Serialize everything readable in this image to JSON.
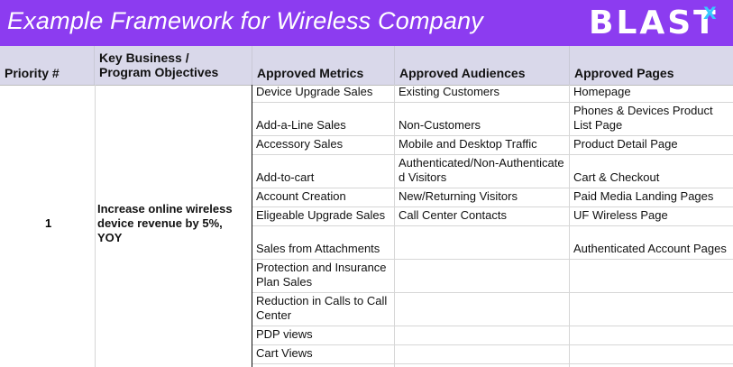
{
  "title": "Example Framework for Wireless Company",
  "logo": {
    "main": "BLAST",
    "accent": "X"
  },
  "colors": {
    "title_bg": "#8c3cf0",
    "header_bg": "#d9d8ea",
    "logo_accent": "#38c8ff"
  },
  "headers": {
    "priority": "Priority #",
    "objectives_line1": "Key Business /",
    "objectives_line2": "Program Objectives",
    "metrics": "Approved Metrics",
    "audiences": "Approved Audiences",
    "pages": "Approved Pages"
  },
  "row": {
    "priority": "1",
    "objective": "Increase online wireless device revenue by 5%, YOY"
  },
  "metrics": [
    "Device Upgrade Sales",
    "Add-a-Line Sales",
    "Accessory Sales",
    "Add-to-cart",
    "Account Creation",
    "Eligeable Upgrade Sales",
    "Sales from Attachments",
    "Protection and Insurance Plan Sales",
    "Reduction in Calls to Call Center",
    "PDP views",
    "Cart Views"
  ],
  "audiences": [
    "Existing Customers",
    "Non-Customers",
    "Mobile and Desktop Traffic",
    "Authenticated/Non-Authenticated Visitors",
    "New/Returning Visitors",
    "Call Center Contacts"
  ],
  "pages": [
    "Homepage",
    "Phones & Devices Product List Page",
    "Product Detail Page",
    "Cart & Checkout",
    "Paid Media Landing Pages",
    "UF Wireless Page",
    "Authenticated Account Pages"
  ]
}
